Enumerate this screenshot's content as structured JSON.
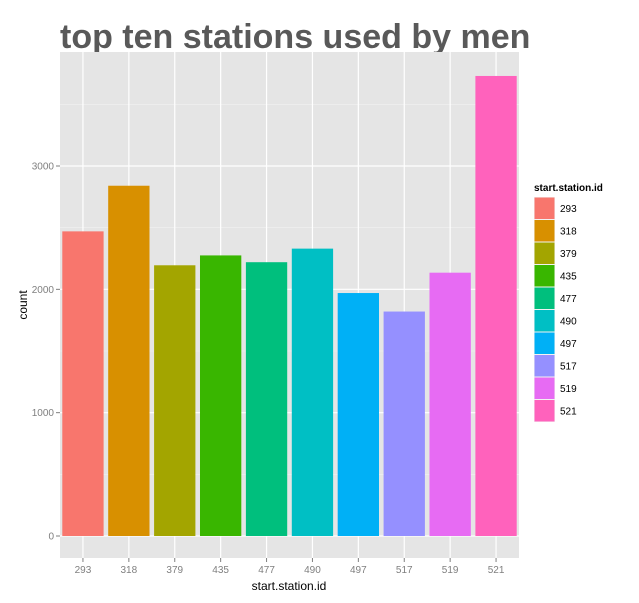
{
  "chart_data": {
    "type": "bar",
    "title": "top ten stations used by men",
    "xlabel": "start.station.id",
    "ylabel": "count",
    "categories": [
      "293",
      "318",
      "379",
      "435",
      "477",
      "490",
      "497",
      "517",
      "519",
      "521"
    ],
    "values": [
      2470,
      2840,
      2195,
      2275,
      2220,
      2330,
      1970,
      1820,
      2135,
      3730
    ],
    "colors": [
      "#F8766D",
      "#D89000",
      "#A3A500",
      "#39B600",
      "#00BF7D",
      "#00BFC4",
      "#00B0F6",
      "#9590FF",
      "#E76BF3",
      "#FF62BC"
    ],
    "yticks": [
      "0",
      "1000",
      "2000",
      "3000"
    ],
    "ylim": [
      0,
      3900
    ],
    "grid": true,
    "panel_color": "#E5E5E5",
    "legend": {
      "title": "start.station.id",
      "position": "right",
      "labels": [
        "293",
        "318",
        "379",
        "435",
        "477",
        "490",
        "497",
        "517",
        "519",
        "521"
      ]
    }
  }
}
